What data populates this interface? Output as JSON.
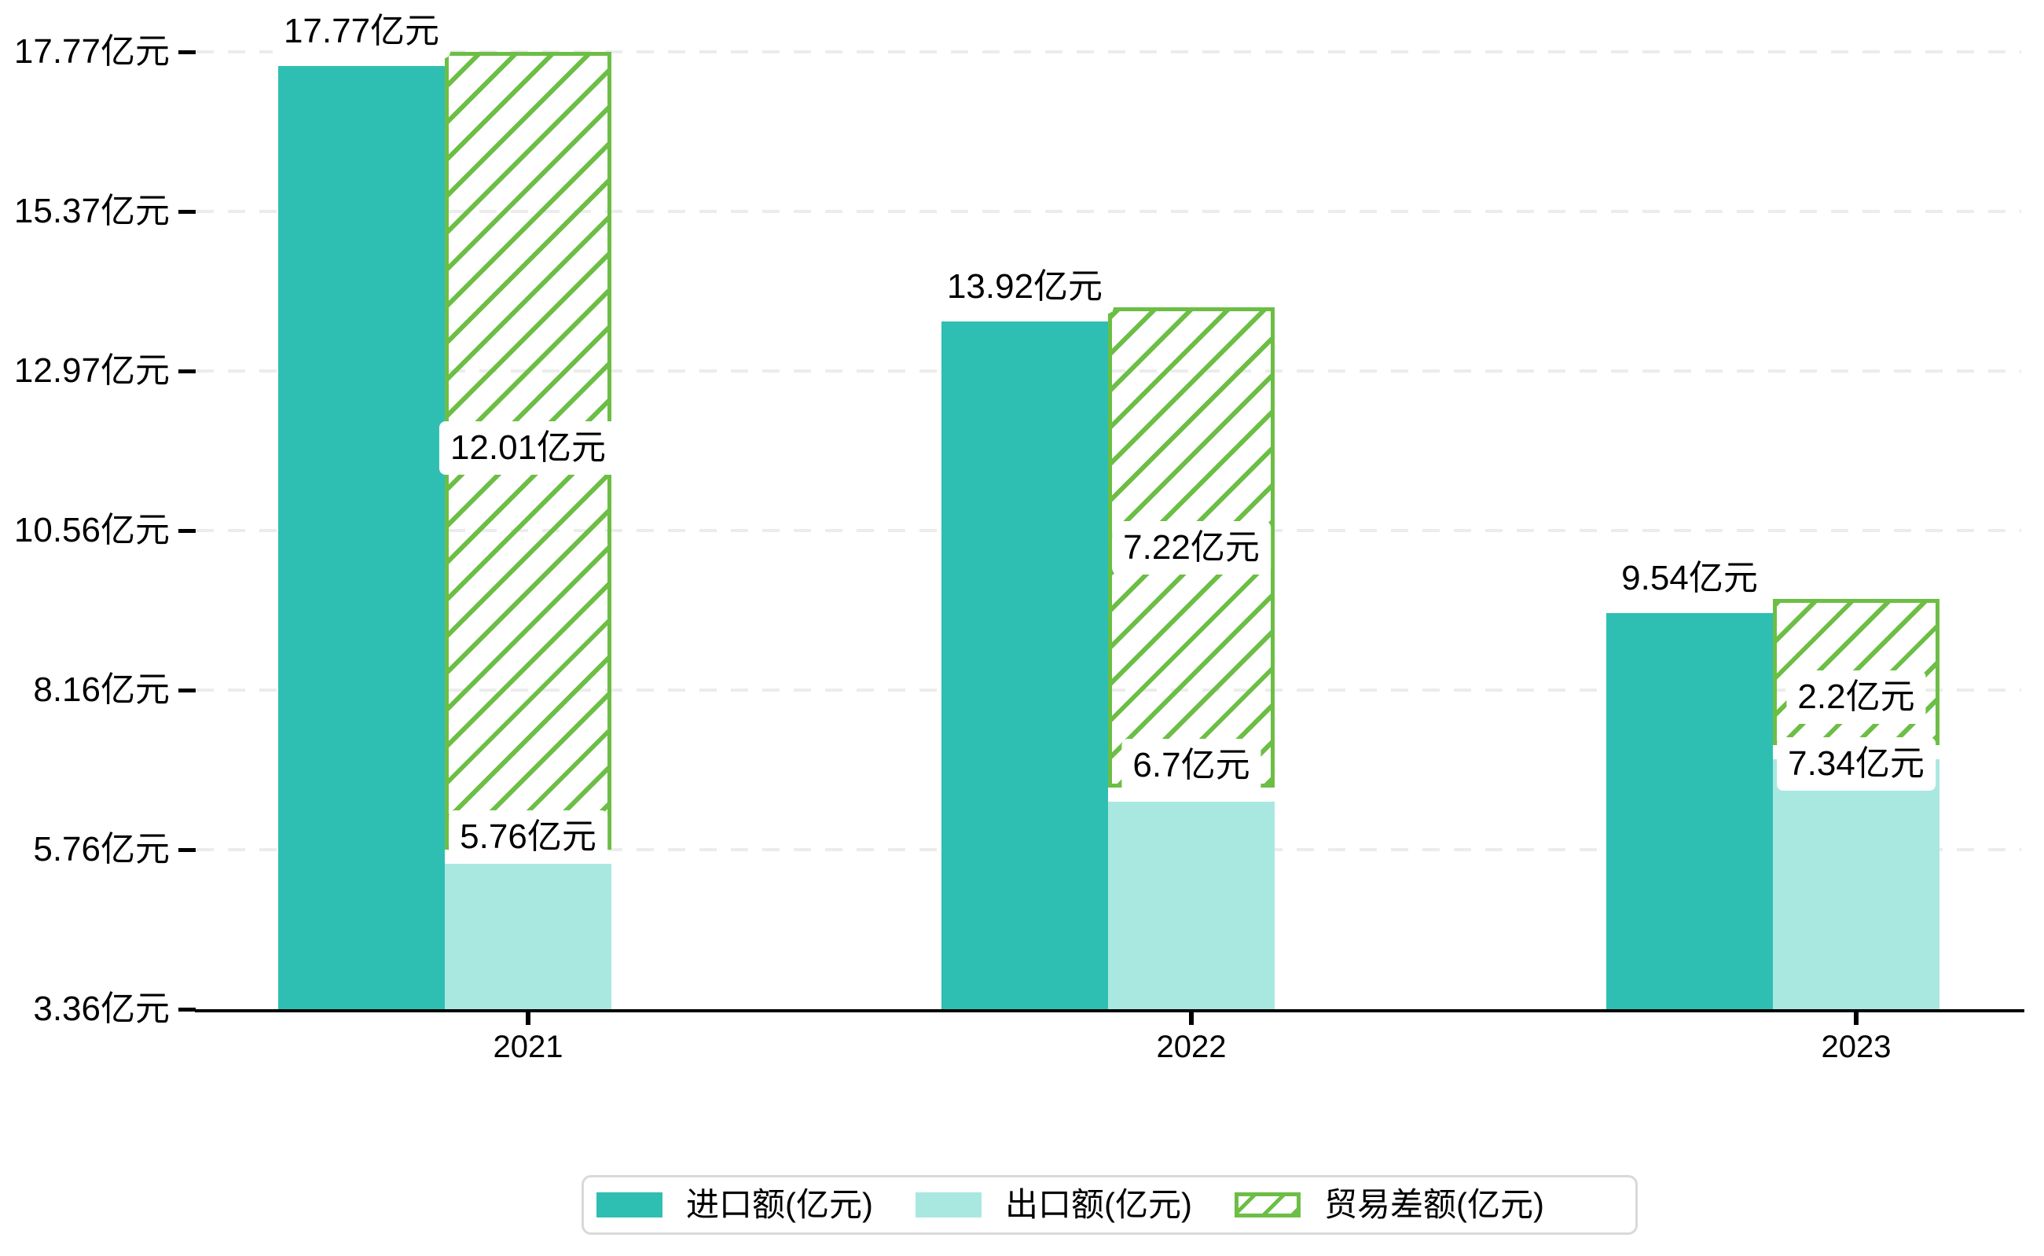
{
  "chart_data": {
    "type": "bar",
    "title": "",
    "unit": "亿元",
    "categories": [
      "2021",
      "2022",
      "2023"
    ],
    "series": [
      {
        "name": "进口额(亿元)",
        "role": "import",
        "values": [
          17.77,
          13.92,
          9.54
        ],
        "labels": [
          "17.77亿元",
          "13.92亿元",
          "9.54亿元"
        ],
        "color": "#2FBFB2",
        "pattern": "solid"
      },
      {
        "name": "出口额(亿元)",
        "role": "export",
        "values": [
          5.76,
          6.7,
          7.34
        ],
        "labels": [
          "5.76亿元",
          "6.7亿元",
          "7.34亿元"
        ],
        "color": "#A9E8E0",
        "pattern": "solid"
      },
      {
        "name": "贸易差额(亿元)",
        "role": "trade-balance",
        "values": [
          12.01,
          7.22,
          2.2
        ],
        "labels": [
          "12.01亿元",
          "7.22亿元",
          "2.2亿元"
        ],
        "color": "#6CBE45",
        "pattern": "hatched",
        "stacked_on": "出口额(亿元)"
      }
    ],
    "y_axis": {
      "min": 3.36,
      "max": 17.77,
      "tick_values": [
        3.36,
        5.76,
        8.16,
        10.56,
        12.97,
        15.37,
        17.77
      ],
      "tick_labels": [
        "3.36亿元",
        "5.76亿元",
        "8.16亿元",
        "10.56亿元",
        "12.97亿元",
        "15.37亿元",
        "17.77亿元"
      ]
    },
    "grid": {
      "dashed": true,
      "color": "#ECECEC"
    },
    "legend": {
      "position": "bottom"
    },
    "colors": {
      "axis": "#000000",
      "import_bar": "#2FBFB2",
      "export_bar": "#A9E8E0",
      "balance_hatch": "#6CBE45",
      "gridline": "#ECECEC",
      "legend_border": "#D9D9D9",
      "background": "#FFFFFF"
    }
  }
}
